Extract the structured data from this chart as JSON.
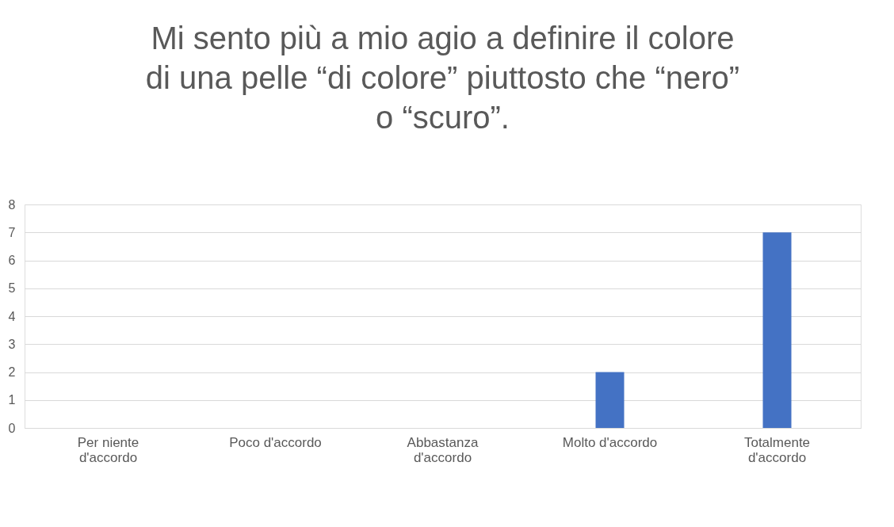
{
  "chart_data": {
    "type": "bar",
    "title": "Mi sento più a mio agio a definire il colore di una pelle “di colore” piuttosto che “nero” o “scuro”.",
    "categories": [
      "Per niente d'accordo",
      "Poco d'accordo",
      "Abbastanza d'accordo",
      "Molto d'accordo",
      "Totalmente d'accordo"
    ],
    "values": [
      0,
      0,
      0,
      2,
      7
    ],
    "color": "#4472c4",
    "ylim": [
      0,
      8
    ],
    "yticks": [
      0,
      1,
      2,
      3,
      4,
      5,
      6,
      7,
      8
    ],
    "grid": "y"
  }
}
